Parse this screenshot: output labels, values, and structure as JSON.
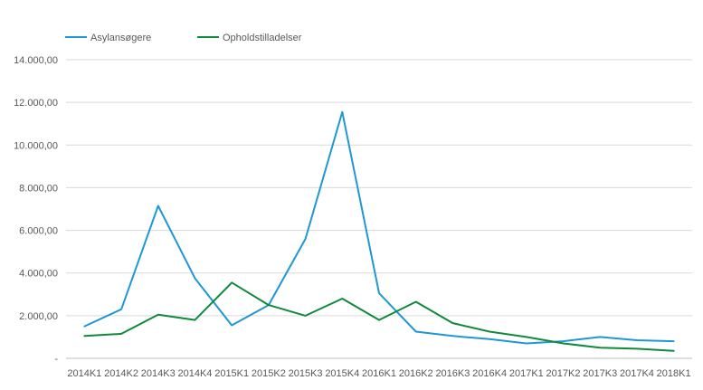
{
  "chart_data": {
    "type": "line",
    "title": "",
    "xlabel": "",
    "ylabel": "",
    "categories": [
      "2014K1",
      "2014K2",
      "2014K3",
      "2014K4",
      "2015K1",
      "2015K2",
      "2015K3",
      "2015K4",
      "2016K1",
      "2016K2",
      "2016K3",
      "2016K4",
      "2017K1",
      "2017K2",
      "2017K3",
      "2017K4",
      "2018K1"
    ],
    "ylim": [
      0,
      14000
    ],
    "yticks": [
      0,
      2000,
      4000,
      6000,
      8000,
      10000,
      12000,
      14000
    ],
    "ytick_labels": [
      "-",
      "2.000,00",
      "4.000,00",
      "6.000,00",
      "8.000,00",
      "10.000,00",
      "12.000,00",
      "14.000,00"
    ],
    "grid": true,
    "legend_position": "top-left",
    "series": [
      {
        "name": "Asylansøgere",
        "color": "#1f97d4",
        "values": [
          1500,
          2300,
          7150,
          3750,
          1550,
          2500,
          5600,
          11550,
          3050,
          1250,
          1050,
          900,
          700,
          800,
          1000,
          850,
          800
        ]
      },
      {
        "name": "Opholdstilladelser",
        "color": "#0f8a3c",
        "values": [
          1050,
          1150,
          2050,
          1800,
          3550,
          2500,
          2000,
          2800,
          1800,
          2650,
          1650,
          1250,
          1000,
          700,
          500,
          450,
          350
        ]
      }
    ]
  }
}
